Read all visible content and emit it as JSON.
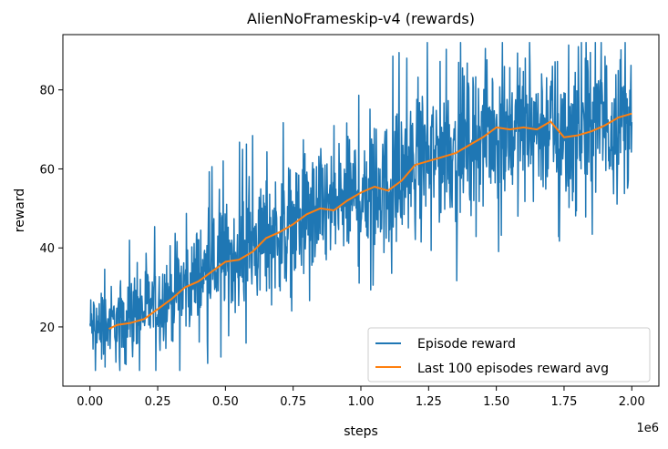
{
  "chart_data": {
    "type": "line",
    "title": "AlienNoFrameskip-v4 (rewards)",
    "xlabel": "steps",
    "ylabel": "reward",
    "x_offset_label": "1e6",
    "xlim": [
      -0.1,
      2.1
    ],
    "ylim": [
      5,
      94
    ],
    "x_ticks": [
      0.0,
      0.25,
      0.5,
      0.75,
      1.0,
      1.25,
      1.5,
      1.75,
      2.0
    ],
    "x_tick_labels": [
      "0.00",
      "0.25",
      "0.50",
      "0.75",
      "1.00",
      "1.25",
      "1.50",
      "1.75",
      "2.00"
    ],
    "y_ticks": [
      20,
      40,
      60,
      80
    ],
    "y_tick_labels": [
      "20",
      "40",
      "60",
      "80"
    ],
    "grid": false,
    "legend_position": "lower-right",
    "series": [
      {
        "name": "Episode reward",
        "color": "#1f77b4",
        "x_start": 0.0,
        "x_end": 2.0,
        "mean_x": [
          0.0,
          0.1,
          0.25,
          0.5,
          0.75,
          1.0,
          1.1,
          1.25,
          1.5,
          1.7,
          1.75,
          2.0
        ],
        "mean_y": [
          20,
          21,
          26,
          37,
          46,
          54,
          55,
          63,
          70,
          71,
          68,
          74
        ],
        "spread_x": [
          0.0,
          0.5,
          1.0,
          1.5,
          2.0
        ],
        "spread_y": [
          7,
          11,
          13,
          14,
          15
        ],
        "min_y": 9,
        "max_y": 92
      },
      {
        "name": "Last 100 episodes reward avg",
        "color": "#ff7f0e",
        "x": [
          0.07,
          0.1,
          0.15,
          0.2,
          0.25,
          0.3,
          0.35,
          0.4,
          0.45,
          0.5,
          0.55,
          0.6,
          0.65,
          0.7,
          0.75,
          0.8,
          0.85,
          0.9,
          0.95,
          1.0,
          1.05,
          1.1,
          1.15,
          1.2,
          1.25,
          1.3,
          1.35,
          1.4,
          1.45,
          1.5,
          1.55,
          1.6,
          1.65,
          1.7,
          1.75,
          1.8,
          1.85,
          1.9,
          1.95,
          2.0
        ],
        "y": [
          19.5,
          20.5,
          21,
          22,
          24.5,
          27,
          30,
          31.5,
          34,
          36.5,
          37,
          39,
          42.5,
          44,
          46,
          48.5,
          50,
          49.5,
          52,
          54,
          55.5,
          54.5,
          57,
          61,
          62,
          63,
          64,
          66,
          68,
          70.5,
          70,
          70.5,
          70,
          72,
          68,
          68.5,
          69.5,
          71,
          73,
          74
        ]
      }
    ]
  }
}
